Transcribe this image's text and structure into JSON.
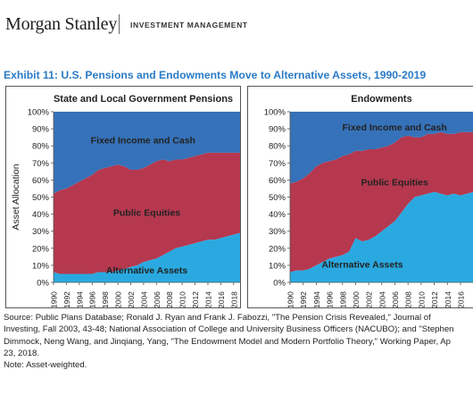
{
  "header": {
    "brand": "Morgan Stanley",
    "division": "INVESTMENT MANAGEMENT"
  },
  "exhibit_title": "Exhibit 11: U.S. Pensions and Endowments Move to Alternative Assets, 1990-2019",
  "chart_data": [
    {
      "type": "area",
      "stacked": true,
      "title": "State and Local Government Pensions",
      "ylabel": "Asset Allocation",
      "ylim": [
        0,
        100
      ],
      "yticks": [
        "0%",
        "10%",
        "20%",
        "30%",
        "40%",
        "50%",
        "60%",
        "70%",
        "80%",
        "90%",
        "100%"
      ],
      "x": [
        1990,
        1991,
        1992,
        1993,
        1994,
        1995,
        1996,
        1997,
        1998,
        1999,
        2000,
        2001,
        2002,
        2003,
        2004,
        2005,
        2006,
        2007,
        2008,
        2009,
        2010,
        2011,
        2012,
        2013,
        2014,
        2015,
        2016,
        2017,
        2018,
        2019
      ],
      "xtick_labels": [
        "1990",
        "1992",
        "1994",
        "1996",
        "1998",
        "2000",
        "2002",
        "2004",
        "2006",
        "2008",
        "2010",
        "2012",
        "2014",
        "2016",
        "2018"
      ],
      "series": [
        {
          "name": "Alternative Assets",
          "color": "#2aa9e0",
          "values": [
            6,
            5,
            5,
            5,
            5,
            5,
            5,
            6,
            6,
            6,
            7,
            8,
            9,
            10,
            12,
            13,
            14,
            16,
            18,
            20,
            21,
            22,
            23,
            24,
            25,
            25,
            26,
            27,
            28,
            29
          ]
        },
        {
          "name": "Public Equities",
          "color": "#b5384f",
          "values": [
            46,
            49,
            50,
            52,
            54,
            56,
            58,
            60,
            61,
            62,
            62,
            60,
            57,
            56,
            55,
            56,
            57,
            56,
            53,
            52,
            51,
            51,
            51,
            51,
            51,
            51,
            50,
            49,
            48,
            47
          ]
        },
        {
          "name": "Fixed Income and Cash",
          "color": "#3672b9",
          "values": [
            48,
            46,
            45,
            43,
            41,
            39,
            37,
            34,
            33,
            32,
            31,
            32,
            34,
            34,
            33,
            31,
            29,
            28,
            29,
            28,
            28,
            27,
            26,
            25,
            24,
            24,
            24,
            24,
            24,
            24
          ]
        }
      ]
    },
    {
      "type": "area",
      "stacked": true,
      "title": "Endowments",
      "ylabel": "",
      "ylim": [
        0,
        100
      ],
      "yticks": [
        "0%",
        "10%",
        "20%",
        "30%",
        "40%",
        "50%",
        "60%",
        "70%",
        "80%",
        "90%",
        "100%"
      ],
      "x": [
        1990,
        1991,
        1992,
        1993,
        1994,
        1995,
        1996,
        1997,
        1998,
        1999,
        2000,
        2001,
        2002,
        2003,
        2004,
        2005,
        2006,
        2007,
        2008,
        2009,
        2010,
        2011,
        2012,
        2013,
        2014,
        2015,
        2016,
        2017,
        2018,
        2019
      ],
      "xtick_labels": [
        "1990",
        "1992",
        "1994",
        "1996",
        "1998",
        "2000",
        "2002",
        "2004",
        "2006",
        "2008",
        "2010",
        "2012",
        "2014",
        "2016"
      ],
      "series": [
        {
          "name": "Alternative Assets",
          "color": "#2aa9e0",
          "values": [
            6,
            7,
            7,
            8,
            10,
            12,
            14,
            15,
            16,
            18,
            26,
            24,
            25,
            27,
            30,
            33,
            36,
            41,
            46,
            50,
            51,
            52,
            53,
            52,
            51,
            52,
            51,
            52,
            53,
            54
          ]
        },
        {
          "name": "Public Equities",
          "color": "#b5384f",
          "values": [
            52,
            52,
            54,
            56,
            58,
            58,
            57,
            57,
            58,
            57,
            51,
            53,
            53,
            51,
            49,
            47,
            46,
            44,
            40,
            35,
            34,
            35,
            34,
            36,
            36,
            35,
            37,
            36,
            35,
            34
          ]
        },
        {
          "name": "Fixed Income and Cash",
          "color": "#3672b9",
          "values": [
            42,
            41,
            39,
            36,
            32,
            30,
            29,
            28,
            26,
            25,
            23,
            23,
            22,
            22,
            21,
            20,
            18,
            15,
            14,
            15,
            15,
            13,
            13,
            12,
            13,
            13,
            12,
            12,
            12,
            12
          ]
        }
      ]
    }
  ],
  "source_lines": [
    "Source: Public Plans Database; Ronald J. Ryan and Frank J. Fabozzi, \"The Pension Crisis Revealed,\" Journal of",
    "Investing, Fall 2003, 43-48; National Association of College and University Business Officers (NACUBO); and \"Stephen",
    "Dimmock, Neng Wang, and Jinqiang, Yang, \"The Endowment Model and Modern Portfolio Theory,\" Working Paper, Ap",
    "23, 2018.",
    "Note: Asset-weighted."
  ]
}
